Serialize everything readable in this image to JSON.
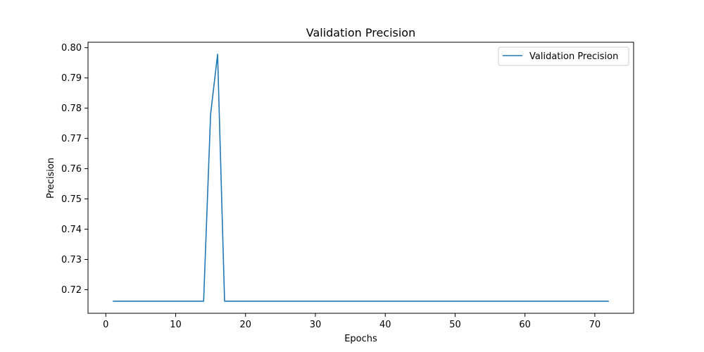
{
  "chart_data": {
    "type": "line",
    "title": "Validation Precision",
    "xlabel": "Epochs",
    "ylabel": "Precision",
    "xlim": [
      -2.55,
      75.55
    ],
    "ylim": [
      0.7122,
      0.8018
    ],
    "x_ticks": [
      0,
      10,
      20,
      30,
      40,
      50,
      60,
      70
    ],
    "y_ticks": [
      0.72,
      0.73,
      0.74,
      0.75,
      0.76,
      0.77,
      0.78,
      0.79,
      0.8
    ],
    "x_tick_labels": [
      "0",
      "10",
      "20",
      "30",
      "40",
      "50",
      "60",
      "70"
    ],
    "y_tick_labels": [
      "0.72",
      "0.73",
      "0.74",
      "0.75",
      "0.76",
      "0.77",
      "0.78",
      "0.79",
      "0.80"
    ],
    "grid": false,
    "legend_position": "upper right",
    "colors": {
      "series": "#1f77b4",
      "axes": "#000000",
      "background": "#ffffff"
    },
    "series": [
      {
        "name": "Validation Precision",
        "x": [
          1,
          2,
          3,
          4,
          5,
          6,
          7,
          8,
          9,
          10,
          11,
          12,
          13,
          14,
          15,
          16,
          17,
          18,
          19,
          20,
          21,
          22,
          23,
          24,
          25,
          26,
          27,
          28,
          29,
          30,
          31,
          32,
          33,
          34,
          35,
          36,
          37,
          38,
          39,
          40,
          41,
          42,
          43,
          44,
          45,
          46,
          47,
          48,
          49,
          50,
          51,
          52,
          53,
          54,
          55,
          56,
          57,
          58,
          59,
          60,
          61,
          62,
          63,
          64,
          65,
          66,
          67,
          68,
          69,
          70,
          71,
          72
        ],
        "y": [
          0.7162,
          0.7162,
          0.7162,
          0.7162,
          0.7162,
          0.7162,
          0.7162,
          0.7162,
          0.7162,
          0.7162,
          0.7162,
          0.7162,
          0.7162,
          0.7162,
          0.778,
          0.7978,
          0.7162,
          0.7162,
          0.7162,
          0.7162,
          0.7162,
          0.7162,
          0.7162,
          0.7162,
          0.7162,
          0.7162,
          0.7162,
          0.7162,
          0.7162,
          0.7162,
          0.7162,
          0.7162,
          0.7162,
          0.7162,
          0.7162,
          0.7162,
          0.7162,
          0.7162,
          0.7162,
          0.7162,
          0.7162,
          0.7162,
          0.7162,
          0.7162,
          0.7162,
          0.7162,
          0.7162,
          0.7162,
          0.7162,
          0.7162,
          0.7162,
          0.7162,
          0.7162,
          0.7162,
          0.7162,
          0.7162,
          0.7162,
          0.7162,
          0.7162,
          0.7162,
          0.7162,
          0.7162,
          0.7162,
          0.7162,
          0.7162,
          0.7162,
          0.7162,
          0.7162,
          0.7162,
          0.7162,
          0.7162,
          0.7162
        ]
      }
    ]
  }
}
